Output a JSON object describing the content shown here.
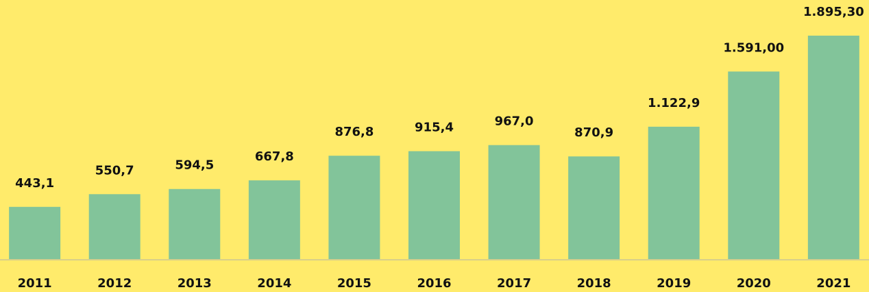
{
  "chart_data": {
    "type": "bar",
    "categories": [
      "2011",
      "2012",
      "2013",
      "2014",
      "2015",
      "2016",
      "2017",
      "2018",
      "2019",
      "2020",
      "2021"
    ],
    "values": [
      443.1,
      550.7,
      594.5,
      667.8,
      876.8,
      915.4,
      967.0,
      870.9,
      1122.9,
      1591.0,
      1895.3
    ],
    "value_labels": [
      "443,1",
      "550,7",
      "594,5",
      "667,8",
      "876,8",
      "915,4",
      "967,0",
      "870,9",
      "1.122,9",
      "1.591,00",
      "1.895,30"
    ],
    "color": "#82c49a"
  }
}
